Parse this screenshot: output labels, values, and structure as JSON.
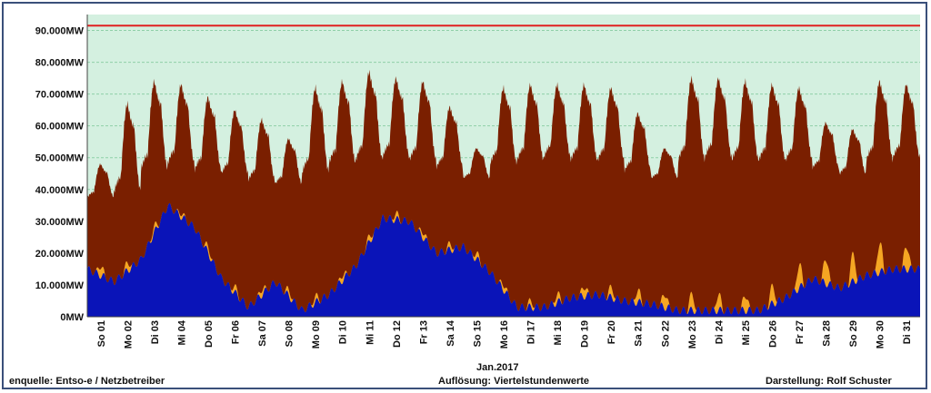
{
  "colors": {
    "plot_bg": "#d4f0e0",
    "grid": "#8fcfa8",
    "load": "#7a1f00",
    "solar": "#f5a623",
    "wind": "#0a14b8",
    "capacity": "#e02020"
  },
  "footer": {
    "source": "enquelle:  Entso-e  / Netzbetreiber",
    "resolution": "Auflösung:  Viertelstundenwerte",
    "author": "Darstellung: Rolf Schuster"
  },
  "chart_data": {
    "type": "area",
    "xlabel": "Jan.2017",
    "ylabel": "",
    "ylim": [
      0,
      95000
    ],
    "grid": true,
    "categories": [
      "So 01",
      "Mo 02",
      "Di 03",
      "Mi 04",
      "Do 05",
      "Fr 06",
      "Sa 07",
      "So 08",
      "Mo 09",
      "Di 10",
      "Mi 11",
      "Do 12",
      "Fr 13",
      "Sa 14",
      "So 15",
      "Mo 16",
      "Di 17",
      "Mi 18",
      "Do 19",
      "Fr 20",
      "Sa 21",
      "So 22",
      "Mo 23",
      "Di 24",
      "Mi 25",
      "Do 26",
      "Fr 27",
      "Sa 28",
      "So 29",
      "Mo 30",
      "Di 31"
    ],
    "yticks": [
      {
        "value": 0,
        "label": "0MW"
      },
      {
        "value": 10000,
        "label": "10.000MW"
      },
      {
        "value": 20000,
        "label": "20.000MW"
      },
      {
        "value": 30000,
        "label": "30.000MW"
      },
      {
        "value": 40000,
        "label": "40.000MW"
      },
      {
        "value": 50000,
        "label": "50.000MW"
      },
      {
        "value": 60000,
        "label": "60.000MW"
      },
      {
        "value": 70000,
        "label": "70.000MW"
      },
      {
        "value": 80000,
        "label": "80.000MW"
      },
      {
        "value": 90000,
        "label": "90.000MW"
      }
    ],
    "capacity_line": 91500,
    "daily": {
      "load_peak": [
        48000,
        67000,
        74000,
        73000,
        69000,
        65000,
        62000,
        56000,
        72000,
        74000,
        77000,
        75000,
        74000,
        66000,
        53000,
        72000,
        73000,
        73000,
        73000,
        72000,
        64000,
        53000,
        75000,
        75000,
        74000,
        73000,
        72000,
        61000,
        59000,
        74000,
        73000
      ],
      "load_min": [
        37000,
        38000,
        45000,
        47000,
        45000,
        44000,
        42000,
        41000,
        44000,
        47000,
        48000,
        49000,
        48000,
        46000,
        43000,
        47000,
        48000,
        49000,
        48000,
        48000,
        45000,
        43000,
        48000,
        49000,
        48000,
        48000,
        48000,
        46000,
        44000,
        48000,
        49000
      ],
      "wind": [
        15000,
        11000,
        18000,
        35000,
        28000,
        12000,
        3000,
        11000,
        2000,
        7000,
        16000,
        31000,
        30000,
        20000,
        22000,
        14000,
        3000,
        3000,
        6000,
        7000,
        5000,
        4000,
        2000,
        2000,
        2000,
        2000,
        6000,
        12000,
        9000,
        13000,
        15000
      ],
      "solar_peak": [
        5000,
        4000,
        3000,
        2000,
        3000,
        3000,
        3000,
        3000,
        3000,
        3000,
        3000,
        3000,
        3000,
        3000,
        3000,
        3000,
        3000,
        4000,
        5000,
        5000,
        6000,
        7000,
        8000,
        8000,
        8000,
        9000,
        12000,
        13000,
        14000,
        15000,
        12000
      ]
    }
  }
}
